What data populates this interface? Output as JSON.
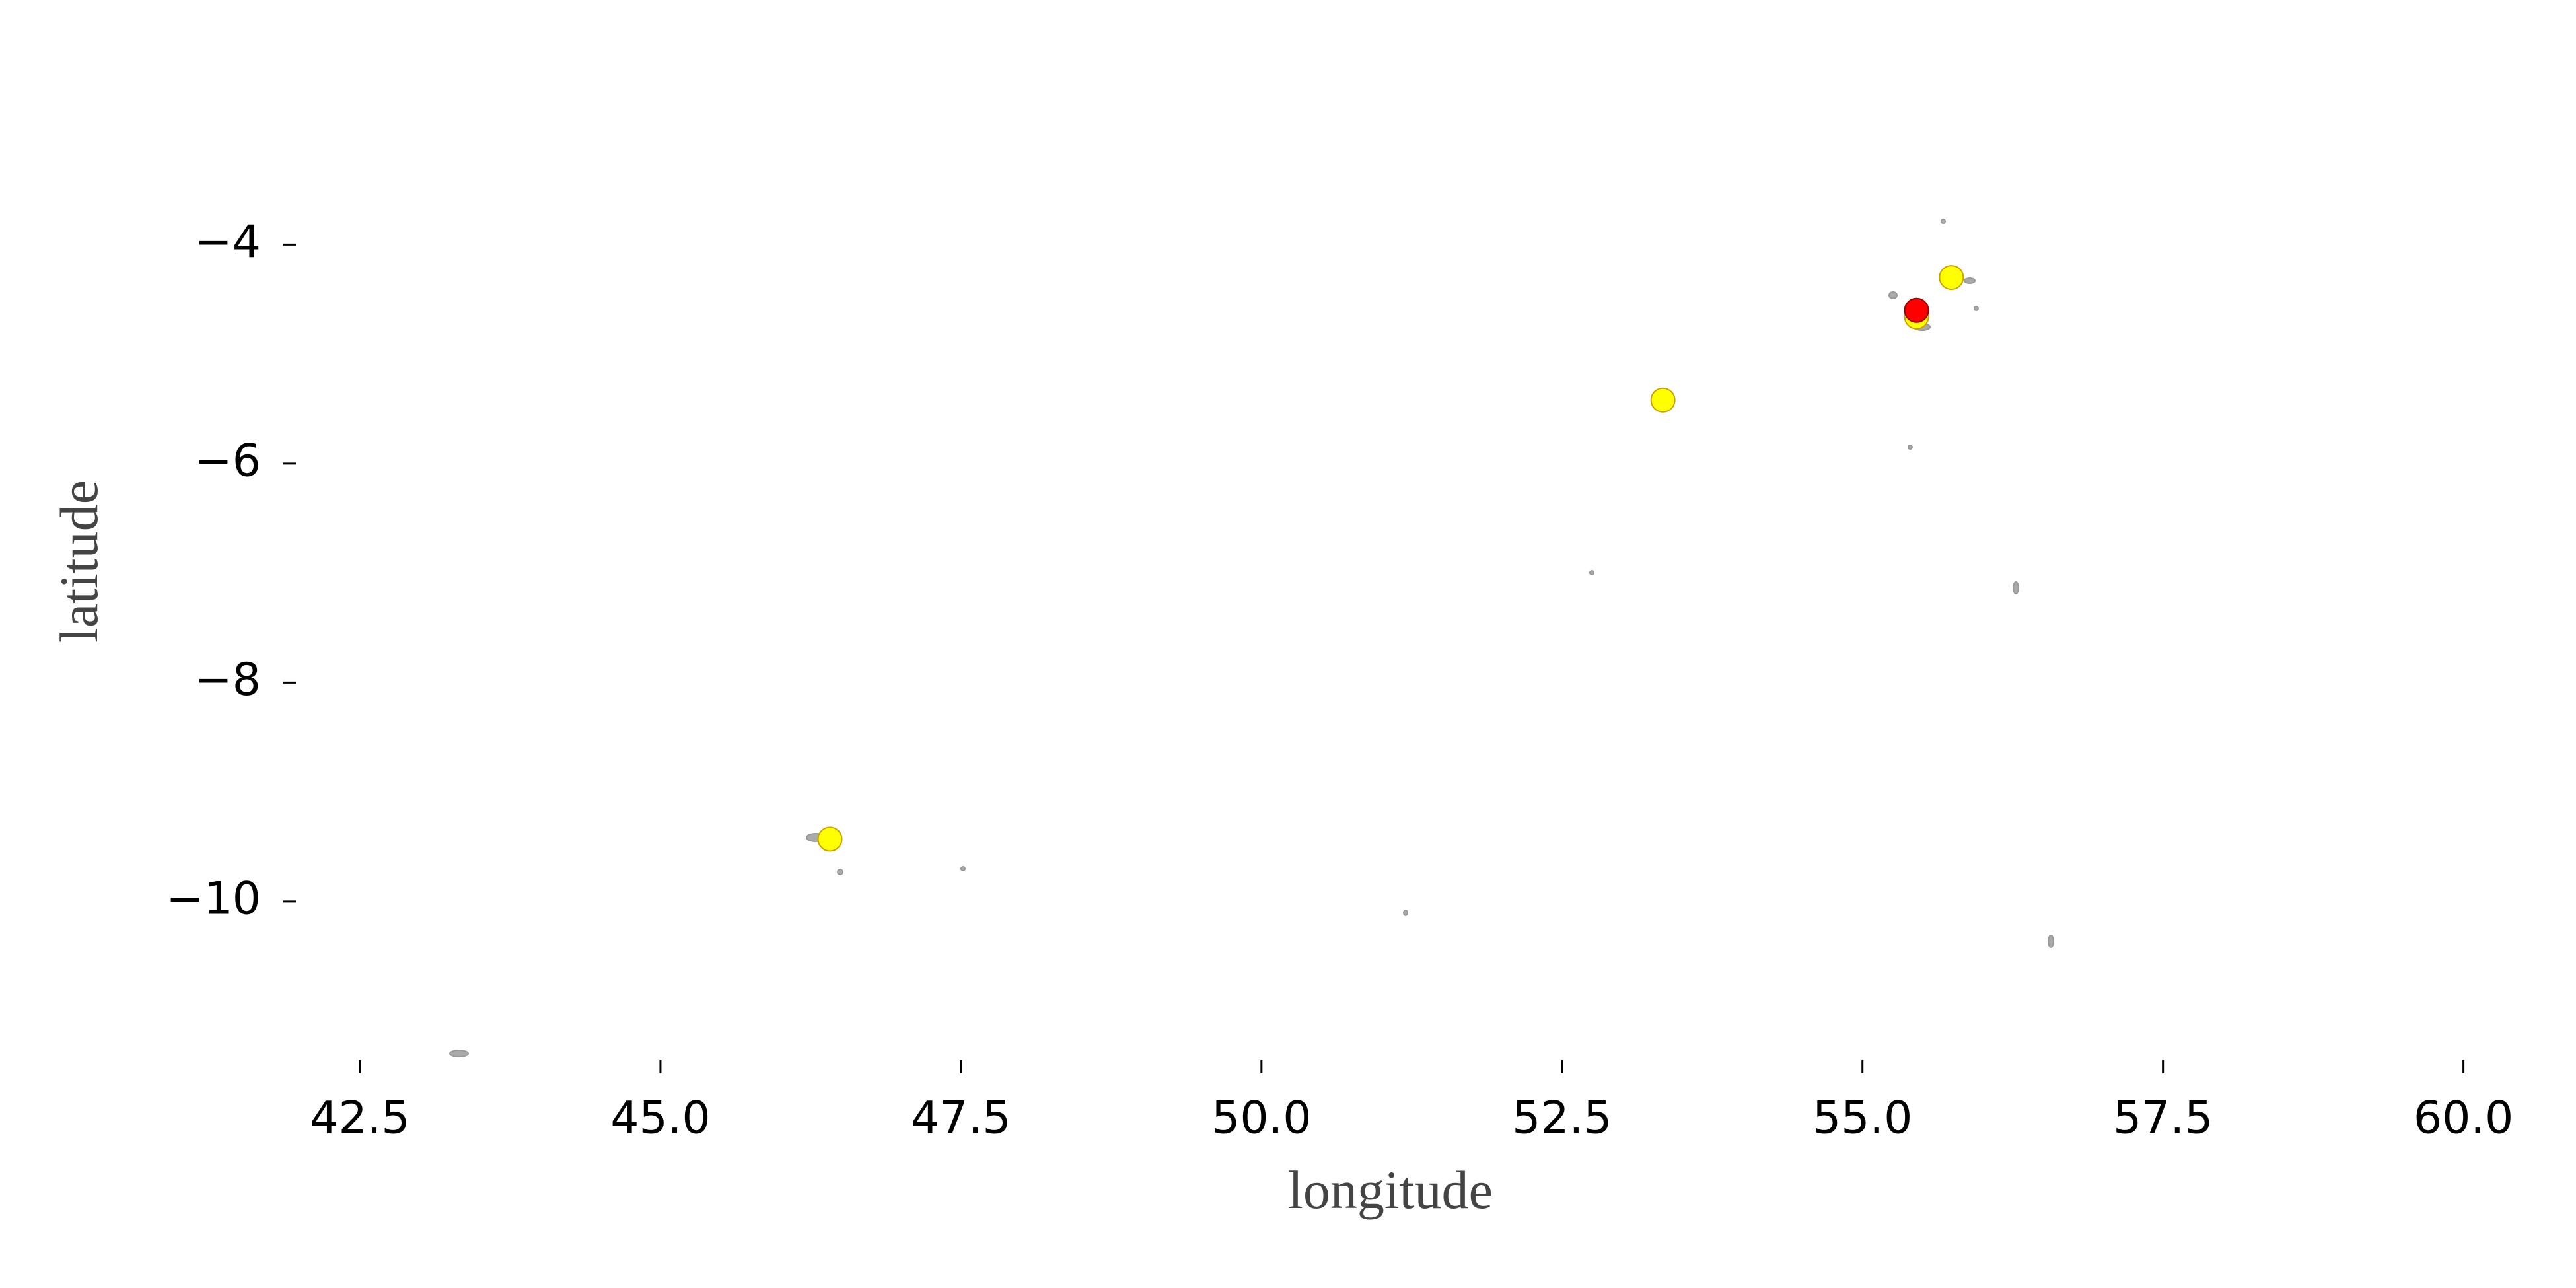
{
  "chart_data": {
    "type": "scatter",
    "xlabel": "longitude",
    "ylabel": "latitude",
    "xlim": [
      42.0,
      60.2
    ],
    "ylim": [
      -11.4,
      -2.9
    ],
    "xticks": [
      42.5,
      {
        "value": 45,
        "label": "45.0"
      },
      47.5,
      {
        "value": 50,
        "label": "50.0"
      },
      52.5,
      {
        "value": 55,
        "label": "55.0"
      },
      57.5,
      {
        "value": 60,
        "label": "60.0"
      }
    ],
    "yticks": [
      {
        "value": -4,
        "label": "−4"
      },
      {
        "value": -6,
        "label": "−6"
      },
      {
        "value": -8,
        "label": "−8"
      },
      {
        "value": -10,
        "label": "−10"
      }
    ],
    "series": [
      {
        "color": "#ffff00",
        "x": [
          46.41,
          53.34,
          55.74,
          55.45
        ],
        "values": [
          -9.43,
          -5.42,
          -4.3,
          -4.66
        ]
      },
      {
        "color": "#ff0000",
        "x": [
          55.45
        ],
        "values": [
          -4.6
        ]
      }
    ]
  }
}
